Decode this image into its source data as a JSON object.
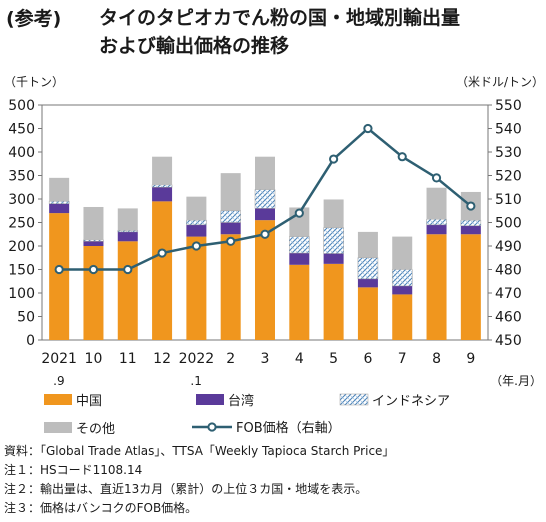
{
  "header": {
    "tag": "(参考)",
    "title_line1": "タイのタピオカでん粉の国・地域別輸出量",
    "title_line2": "および輸出価格の推移"
  },
  "chart_data": {
    "type": "bar",
    "stacked": true,
    "left_unit": "（千トン）",
    "right_unit": "（米ドル/トン）",
    "x_unit": "（年.月）",
    "categories": [
      [
        "2021",
        ".9"
      ],
      [
        "10"
      ],
      [
        "11"
      ],
      [
        "12"
      ],
      [
        "2022",
        ".1"
      ],
      [
        "2"
      ],
      [
        "3"
      ],
      [
        "4"
      ],
      [
        "5"
      ],
      [
        "6"
      ],
      [
        "7"
      ],
      [
        "8"
      ],
      [
        "9"
      ]
    ],
    "ylim_left": [
      0,
      500
    ],
    "yticks_left": [
      0,
      50,
      100,
      150,
      200,
      250,
      300,
      350,
      400,
      450,
      500
    ],
    "ylim_right": [
      450,
      550
    ],
    "yticks_right": [
      450,
      460,
      470,
      480,
      490,
      500,
      510,
      520,
      530,
      540,
      550
    ],
    "series": [
      {
        "name": "中国",
        "color": "#f0961e",
        "values": [
          270,
          200,
          210,
          295,
          220,
          225,
          255,
          160,
          162,
          112,
          97,
          225,
          225
        ]
      },
      {
        "name": "台湾",
        "color": "#5a3a9a",
        "values": [
          20,
          10,
          20,
          30,
          25,
          25,
          25,
          25,
          22,
          18,
          18,
          20,
          18
        ]
      },
      {
        "name": "インドネシア",
        "color": "#9cc4e6",
        "pattern": "hatch",
        "values": [
          5,
          3,
          3,
          5,
          10,
          25,
          40,
          35,
          55,
          45,
          35,
          12,
          12
        ]
      },
      {
        "name": "その他",
        "color": "#bdbdbd",
        "values": [
          50,
          70,
          47,
          60,
          50,
          80,
          70,
          62,
          60,
          55,
          70,
          67,
          60
        ]
      }
    ],
    "line": {
      "name": "FOB価格（右軸）",
      "color": "#2e5f72",
      "axis": "right",
      "values": [
        480,
        480,
        480,
        487,
        490,
        492,
        495,
        504,
        527,
        540,
        528,
        519,
        507
      ]
    },
    "legend_position": "bottom",
    "grid": false
  },
  "notes": [
    "資料：「Global Trade Atlas」、TTSA「Weekly Tapioca Starch Price」",
    "注１：HSコード1108.14",
    "注２：輸出量は、直近13カ月（累計）の上位３カ国・地域を表示。",
    "注３：価格はバンコクのFOB価格。"
  ]
}
